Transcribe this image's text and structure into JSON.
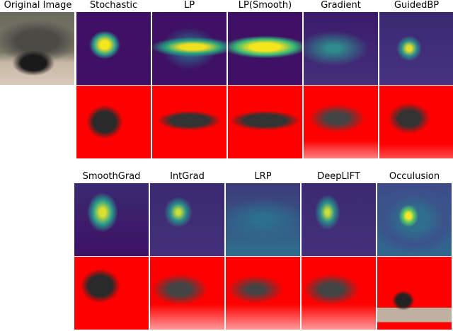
{
  "original": {
    "title": "Original Image"
  },
  "rows": [
    {
      "methods": [
        "Stochastic",
        "LP",
        "LP(Smooth)",
        "Gradient",
        "GuidedBP"
      ]
    },
    {
      "methods": [
        "SmoothGrad",
        "IntGrad",
        "LRP",
        "DeepLIFT",
        "Occulusion"
      ]
    }
  ]
}
